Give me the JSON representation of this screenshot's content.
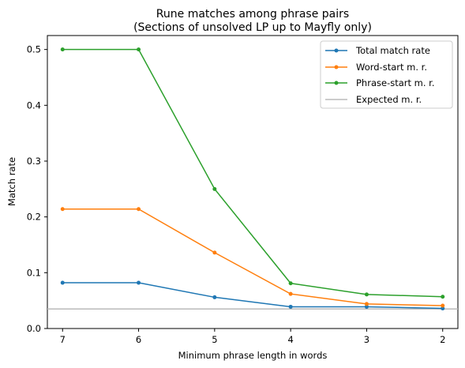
{
  "chart_data": {
    "type": "line",
    "title_lines": [
      "Rune matches among phrase pairs",
      "(Sections of unsolved LP up to Mayfly only)"
    ],
    "xlabel": "Minimum phrase length in words",
    "ylabel": "Match rate",
    "x": [
      7,
      6,
      5,
      4,
      3,
      2
    ],
    "x_reversed": true,
    "xlim": [
      7.2,
      1.8
    ],
    "ylim": [
      0,
      0.525
    ],
    "x_ticks": [
      "7",
      "6",
      "5",
      "4",
      "3",
      "2"
    ],
    "y_ticks": [
      0.0,
      0.1,
      0.2,
      0.3,
      0.4,
      0.5
    ],
    "y_tick_labels": [
      "0.0",
      "0.1",
      "0.2",
      "0.3",
      "0.4",
      "0.5"
    ],
    "grid": false,
    "legend_position": "top-right",
    "series": [
      {
        "name": "Total match rate",
        "color": "#1f77b4",
        "values": [
          0.082,
          0.082,
          0.056,
          0.039,
          0.039,
          0.036
        ]
      },
      {
        "name": "Word-start m. r.",
        "color": "#ff7f0e",
        "values": [
          0.214,
          0.214,
          0.136,
          0.062,
          0.044,
          0.041
        ]
      },
      {
        "name": "Phrase-start m. r.",
        "color": "#2ca02c",
        "values": [
          0.5,
          0.5,
          0.25,
          0.081,
          0.061,
          0.057
        ]
      }
    ],
    "reference_line": {
      "name": "Expected m. r.",
      "color": "#bbbbbb",
      "value": 0.035
    }
  }
}
